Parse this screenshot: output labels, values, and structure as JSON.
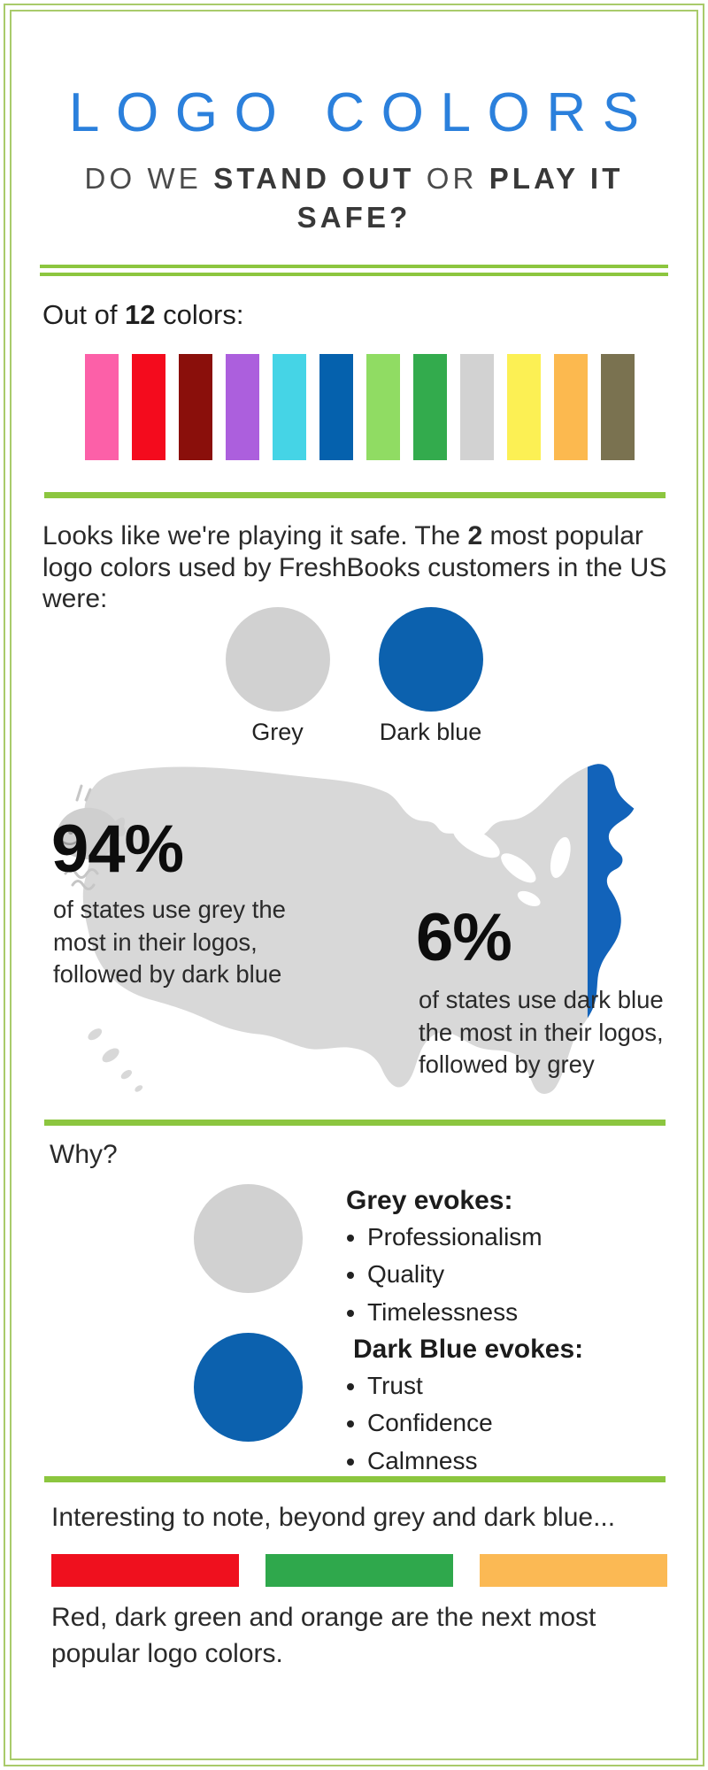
{
  "header": {
    "title": "LOGO COLORS",
    "subtitle": [
      {
        "text": "DO WE ",
        "bold": false
      },
      {
        "text": "STAND OUT",
        "bold": true
      },
      {
        "text": " OR ",
        "bold": false
      },
      {
        "text": "PLAY IT SAFE?",
        "bold": true
      }
    ]
  },
  "palette": {
    "intro": [
      {
        "text": "Out of ",
        "bold": false
      },
      {
        "text": "12",
        "bold": true
      },
      {
        "text": " colors:",
        "bold": false
      }
    ],
    "colors": [
      {
        "name": "pink",
        "hex": "#FC60A8"
      },
      {
        "name": "red",
        "hex": "#F40B1D"
      },
      {
        "name": "dark-red",
        "hex": "#8A0F0B"
      },
      {
        "name": "purple",
        "hex": "#AC5FDD"
      },
      {
        "name": "cyan",
        "hex": "#45D4E6"
      },
      {
        "name": "dark-blue",
        "hex": "#0561AD"
      },
      {
        "name": "light-green",
        "hex": "#90DC63"
      },
      {
        "name": "green",
        "hex": "#33AB4D"
      },
      {
        "name": "grey",
        "hex": "#D2D2D2"
      },
      {
        "name": "yellow",
        "hex": "#FCF054"
      },
      {
        "name": "orange",
        "hex": "#FCB94F"
      },
      {
        "name": "olive",
        "hex": "#7A7250"
      }
    ]
  },
  "popular": {
    "text": [
      {
        "text": "Looks like we're playing it safe. The ",
        "bold": false
      },
      {
        "text": "2",
        "bold": true
      },
      {
        "text": " most popular logo colors used by FreshBooks customers in the US were:",
        "bold": false
      }
    ],
    "circles": [
      {
        "label": "Grey",
        "hex": "#D1D1D1"
      },
      {
        "label": "Dark blue",
        "hex": "#0C61AE"
      }
    ]
  },
  "map": {
    "grey_hex": "#D8D8D8",
    "blue_hex": "#1263BA",
    "stat_grey": {
      "value": "94%",
      "desc": "of states use grey the most in their logos, followed by dark blue"
    },
    "stat_blue": {
      "value": "6%",
      "desc": "of states use dark blue the most in their logos, followed by grey"
    }
  },
  "why": {
    "heading": "Why?",
    "grey": {
      "circle_hex": "#D1D1D1",
      "heading": "Grey evokes:",
      "items": [
        "Professionalism",
        "Quality",
        "Timelessness"
      ]
    },
    "blue": {
      "circle_hex": "#0C61AE",
      "heading": "Dark Blue evokes:",
      "items": [
        "Trust",
        "Confidence",
        "Calmness"
      ]
    }
  },
  "footer": {
    "intro": "Interesting to note, beyond grey and dark blue...",
    "bars": [
      {
        "name": "red",
        "hex": "#EF101E"
      },
      {
        "name": "dark-green",
        "hex": "#2FA84C"
      },
      {
        "name": "orange",
        "hex": "#FBB954"
      }
    ],
    "note": "Red, dark green and orange are the next most popular logo colors."
  },
  "theme": {
    "border_green": "#A9CB6B",
    "divider_green": "#8CC63F",
    "title_blue": "#2B80DC"
  }
}
